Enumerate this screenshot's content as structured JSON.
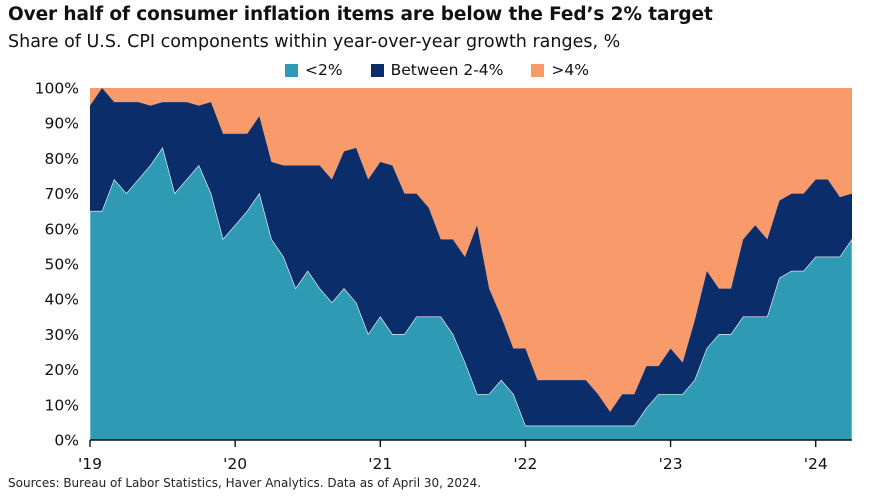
{
  "title": "Over half of consumer inflation items are below the Fed’s 2% target",
  "subtitle": "Share of U.S. CPI components within year-over-year growth ranges, %",
  "source": "Sources: Bureau of Labor Statistics, Haver Analytics. Data as of April 30, 2024.",
  "colors": {
    "below2": "#2e9ab3",
    "between": "#0b2e6b",
    "above4": "#f99a6b"
  },
  "legend": [
    {
      "label": "<2%",
      "color": "#2e9ab3"
    },
    {
      "label": "Between 2-4%",
      "color": "#0b2e6b"
    },
    {
      "label": ">4%",
      "color": "#f99a6b"
    }
  ],
  "chart_data": {
    "type": "area",
    "stacked": true,
    "x_start": "2019-01",
    "x_end": "2024-04",
    "x_ticks": [
      "'19",
      "'20",
      "'21",
      "'22",
      "'23",
      "'24"
    ],
    "y_ticks": [
      "0%",
      "10%",
      "20%",
      "30%",
      "40%",
      "50%",
      "60%",
      "70%",
      "80%",
      "90%",
      "100%"
    ],
    "ylim": [
      0,
      100
    ],
    "series": [
      {
        "name": "<2%",
        "values": [
          65,
          65,
          74,
          70,
          74,
          78,
          83,
          70,
          74,
          78,
          70,
          57,
          61,
          65,
          70,
          57,
          52,
          43,
          48,
          43,
          39,
          43,
          39,
          30,
          35,
          30,
          30,
          35,
          35,
          35,
          30,
          22,
          13,
          13,
          17,
          13,
          4,
          4,
          4,
          4,
          4,
          4,
          4,
          4,
          4,
          4,
          9,
          13,
          13,
          13,
          17,
          26,
          30,
          30,
          35,
          35,
          35,
          46,
          48,
          48,
          52,
          52,
          52,
          57
        ]
      },
      {
        "name": "Between 2-4%",
        "values": [
          30,
          35,
          22,
          26,
          22,
          17,
          13,
          26,
          22,
          17,
          26,
          30,
          26,
          22,
          22,
          22,
          26,
          35,
          30,
          35,
          35,
          39,
          44,
          44,
          44,
          48,
          40,
          35,
          31,
          22,
          27,
          30,
          48,
          30,
          18,
          13,
          22,
          13,
          13,
          13,
          13,
          13,
          9,
          4,
          9,
          9,
          12,
          8,
          13,
          9,
          17,
          22,
          13,
          13,
          22,
          26,
          22,
          22,
          22,
          22,
          22,
          22,
          17,
          13
        ]
      },
      {
        "name": ">4%",
        "values": [
          5,
          0,
          4,
          4,
          4,
          5,
          4,
          4,
          4,
          5,
          4,
          13,
          13,
          13,
          8,
          21,
          22,
          22,
          22,
          22,
          26,
          18,
          17,
          26,
          21,
          22,
          30,
          30,
          34,
          43,
          43,
          48,
          39,
          57,
          65,
          74,
          74,
          83,
          83,
          83,
          83,
          83,
          87,
          92,
          87,
          87,
          79,
          79,
          74,
          78,
          66,
          52,
          57,
          57,
          43,
          39,
          43,
          32,
          30,
          30,
          26,
          26,
          31,
          30
        ]
      }
    ]
  }
}
